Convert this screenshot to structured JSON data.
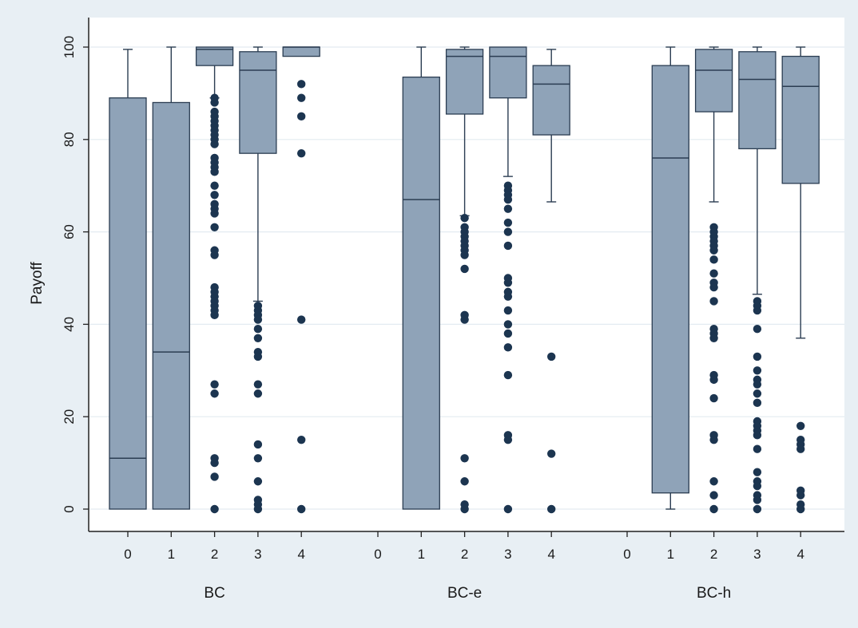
{
  "chart_data": {
    "type": "box",
    "ylabel": "Payoff",
    "xlabel": "",
    "ylim": [
      0,
      100
    ],
    "yticks": [
      0,
      20,
      40,
      60,
      80,
      100
    ],
    "grid": true,
    "legend": "none",
    "colors": {
      "page_background": "#e8eff4",
      "plot_background": "#ffffff",
      "gridline": "#e3ebf1",
      "box_fill": "#8fa3b8",
      "box_stroke": "#2b3d52",
      "outlier": "#1c3550"
    },
    "groups": [
      {
        "name": "BC",
        "categories": [
          {
            "label": "0",
            "whisker_low": 0,
            "q1": 0,
            "median": 11,
            "q3": 89,
            "whisker_high": 99.5,
            "outliers": []
          },
          {
            "label": "1",
            "whisker_low": 0,
            "q1": 0,
            "median": 34,
            "q3": 88,
            "whisker_high": 100,
            "outliers": []
          },
          {
            "label": "2",
            "whisker_low": 89,
            "q1": 96,
            "median": 99.5,
            "q3": 100,
            "whisker_high": 100,
            "outliers": [
              89,
              88,
              86,
              85,
              84,
              83,
              82,
              81,
              80,
              79,
              76,
              75,
              74,
              73,
              70,
              68,
              66,
              65,
              64,
              61,
              56,
              55,
              48,
              47,
              46,
              45,
              44,
              43,
              42,
              27,
              25,
              11,
              10,
              7,
              0
            ]
          },
          {
            "label": "3",
            "whisker_low": 45,
            "q1": 77,
            "median": 95,
            "q3": 99,
            "whisker_high": 100,
            "outliers": [
              44,
              43,
              42,
              41,
              39,
              37,
              34,
              33,
              27,
              25,
              14,
              11,
              6,
              2,
              1,
              0
            ]
          },
          {
            "label": "4",
            "whisker_low": 98,
            "q1": 98,
            "median": 100,
            "q3": 100,
            "whisker_high": 100,
            "outliers": [
              92,
              89,
              85,
              77,
              41,
              15,
              0
            ]
          }
        ]
      },
      {
        "name": "BC-e",
        "categories": [
          {
            "label": "0",
            "empty": true
          },
          {
            "label": "1",
            "whisker_low": 0,
            "q1": 0,
            "median": 67,
            "q3": 93.5,
            "whisker_high": 100,
            "outliers": []
          },
          {
            "label": "2",
            "whisker_low": 63.5,
            "q1": 85.5,
            "median": 98,
            "q3": 99.5,
            "whisker_high": 100,
            "outliers": [
              63,
              61,
              60,
              59,
              58,
              57,
              56,
              55,
              52,
              42,
              41,
              11,
              6,
              1,
              0
            ]
          },
          {
            "label": "3",
            "whisker_low": 72,
            "q1": 89,
            "median": 98,
            "q3": 100,
            "whisker_high": 100,
            "outliers": [
              70,
              69,
              68,
              67,
              65,
              62,
              60,
              57,
              50,
              49,
              47,
              46,
              43,
              40,
              38,
              35,
              29,
              16,
              15,
              0
            ]
          },
          {
            "label": "4",
            "whisker_low": 66.5,
            "q1": 81,
            "median": 92,
            "q3": 96,
            "whisker_high": 99.5,
            "outliers": [
              33,
              12,
              0
            ]
          }
        ]
      },
      {
        "name": "BC-h",
        "categories": [
          {
            "label": "0",
            "empty": true
          },
          {
            "label": "1",
            "whisker_low": 0,
            "q1": 3.5,
            "median": 76,
            "q3": 96,
            "whisker_high": 100,
            "outliers": []
          },
          {
            "label": "2",
            "whisker_low": 66.5,
            "q1": 86,
            "median": 95,
            "q3": 99.5,
            "whisker_high": 100,
            "outliers": [
              61,
              60,
              59,
              58,
              57,
              56,
              54,
              51,
              49,
              48,
              45,
              39,
              38,
              37,
              29,
              28,
              24,
              16,
              15,
              6,
              3,
              0
            ]
          },
          {
            "label": "3",
            "whisker_low": 46.5,
            "q1": 78,
            "median": 93,
            "q3": 99,
            "whisker_high": 100,
            "outliers": [
              45,
              44,
              43,
              39,
              33,
              30,
              28,
              27,
              25,
              23,
              19,
              18,
              17,
              16,
              13,
              8,
              6,
              5,
              3,
              2,
              0
            ]
          },
          {
            "label": "4",
            "whisker_low": 37,
            "q1": 70.5,
            "median": 91.5,
            "q3": 98,
            "whisker_high": 100,
            "outliers": [
              18,
              15,
              14,
              13,
              4,
              3,
              1,
              0
            ]
          }
        ]
      }
    ]
  }
}
